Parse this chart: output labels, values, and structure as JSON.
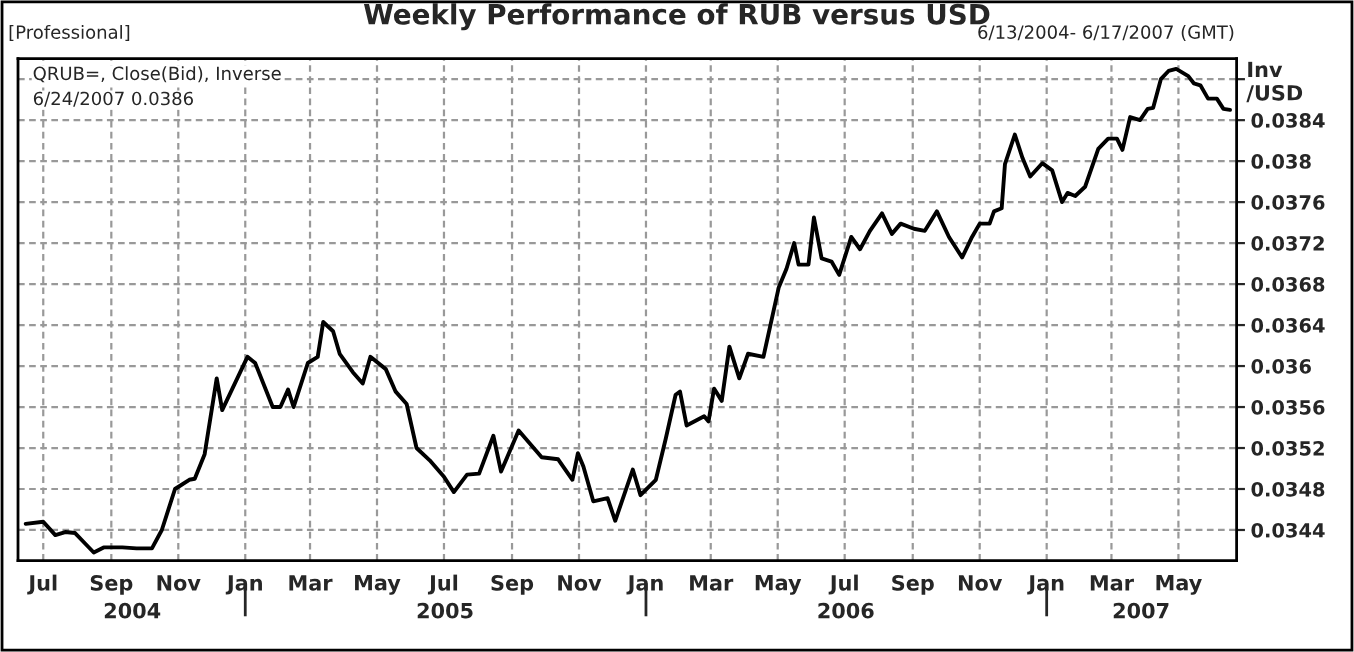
{
  "chart_data": {
    "type": "line",
    "title": "Weekly Performance of RUB versus USD",
    "subtitle": "6/13/2004- 6/17/2007 (GMT)",
    "ylabel": "Inv\n/USD",
    "annotations": [
      "[Professional]",
      "QRUB=, Close(Bid), Inverse",
      "6/24/2007 0.0386"
    ],
    "x": [
      "2004-06-15",
      "2004-07-01",
      "2004-07-12",
      "2004-07-21",
      "2004-07-30",
      "2004-08-07",
      "2004-08-16",
      "2004-08-25",
      "2004-09-11",
      "2004-09-24",
      "2004-10-08",
      "2004-10-17",
      "2004-10-29",
      "2004-11-11",
      "2004-11-16",
      "2004-11-25",
      "2004-12-06",
      "2004-12-11",
      "2005-01-03",
      "2005-01-10",
      "2005-01-26",
      "2005-02-02",
      "2005-02-09",
      "2005-02-14",
      "2005-02-27",
      "2005-03-08",
      "2005-03-13",
      "2005-03-22",
      "2005-03-28",
      "2005-04-09",
      "2005-04-18",
      "2005-04-25",
      "2005-05-09",
      "2005-05-18",
      "2005-05-28",
      "2005-06-06",
      "2005-06-18",
      "2005-07-01",
      "2005-07-10",
      "2005-07-22",
      "2005-08-02",
      "2005-08-15",
      "2005-08-22",
      "2005-09-07",
      "2005-09-28",
      "2005-10-13",
      "2005-10-26",
      "2005-10-31",
      "2005-11-05",
      "2005-11-14",
      "2005-11-27",
      "2005-12-04",
      "2005-12-20",
      "2005-12-27",
      "2006-01-10",
      "2006-01-19",
      "2006-01-28",
      "2006-02-01",
      "2006-02-07",
      "2006-02-23",
      "2006-02-27",
      "2006-03-04",
      "2006-03-11",
      "2006-03-18",
      "2006-03-27",
      "2006-04-04",
      "2006-04-18",
      "2006-05-02",
      "2006-05-09",
      "2006-05-16",
      "2006-05-20",
      "2006-05-29",
      "2006-06-03",
      "2006-06-10",
      "2006-06-19",
      "2006-06-26",
      "2006-07-07",
      "2006-07-15",
      "2006-07-24",
      "2006-08-04",
      "2006-08-13",
      "2006-08-21",
      "2006-09-02",
      "2006-09-12",
      "2006-09-23",
      "2006-10-04",
      "2006-10-16",
      "2006-10-25",
      "2006-11-01",
      "2006-11-10",
      "2006-11-14",
      "2006-11-21",
      "2006-11-24",
      "2006-12-03",
      "2006-12-10",
      "2006-12-17",
      "2006-12-28",
      "2007-01-06",
      "2007-01-15",
      "2007-01-20",
      "2007-01-27",
      "2007-02-05",
      "2007-02-17",
      "2007-02-26",
      "2007-03-06",
      "2007-03-11",
      "2007-03-18",
      "2007-03-27",
      "2007-04-03",
      "2007-04-08",
      "2007-04-15",
      "2007-04-22",
      "2007-04-29",
      "2007-05-10",
      "2007-05-15",
      "2007-05-21",
      "2007-05-28",
      "2007-06-05",
      "2007-06-11",
      "2007-06-17"
    ],
    "series": [
      {
        "color": "#000000",
        "values": [
          0.03446,
          0.03448,
          0.03435,
          0.03438,
          0.03437,
          0.03428,
          0.03418,
          0.03423,
          0.03423,
          0.03422,
          0.03422,
          0.0344,
          0.0348,
          0.03489,
          0.0349,
          0.03514,
          0.03588,
          0.03557,
          0.03609,
          0.03603,
          0.0356,
          0.0356,
          0.03577,
          0.0356,
          0.03603,
          0.03609,
          0.03643,
          0.03634,
          0.03612,
          0.03594,
          0.03583,
          0.03609,
          0.03597,
          0.03575,
          0.03563,
          0.0352,
          0.03508,
          0.03492,
          0.03477,
          0.03494,
          0.03495,
          0.03532,
          0.03497,
          0.03537,
          0.03511,
          0.03509,
          0.03489,
          0.03515,
          0.03502,
          0.03468,
          0.03471,
          0.03449,
          0.03499,
          0.03474,
          0.03489,
          0.03529,
          0.03572,
          0.03575,
          0.03542,
          0.03551,
          0.03546,
          0.03578,
          0.03566,
          0.03619,
          0.03588,
          0.03612,
          0.03609,
          0.03677,
          0.03695,
          0.0372,
          0.03699,
          0.03699,
          0.03745,
          0.03705,
          0.03702,
          0.03689,
          0.03726,
          0.03714,
          0.03732,
          0.03749,
          0.03729,
          0.03739,
          0.03734,
          0.03732,
          0.03751,
          0.03726,
          0.03706,
          0.03726,
          0.03739,
          0.03739,
          0.03751,
          0.03754,
          0.03797,
          0.03826,
          0.03803,
          0.03785,
          0.03798,
          0.03791,
          0.0376,
          0.03769,
          0.03766,
          0.03775,
          0.03812,
          0.03822,
          0.03822,
          0.03811,
          0.03843,
          0.0384,
          0.03851,
          0.03852,
          0.0388,
          0.03888,
          0.0389,
          0.03883,
          0.03876,
          0.03874,
          0.03861,
          0.03861,
          0.03851,
          0.0385
        ]
      }
    ],
    "xlim": [
      "2004-06-08",
      "2007-06-23"
    ],
    "xticks": [
      {
        "value": "2004-07-01",
        "label": "Jul"
      },
      {
        "value": "2004-09-01",
        "label": "Sep"
      },
      {
        "value": "2004-11-01",
        "label": "Nov"
      },
      {
        "value": "2005-01-01",
        "label": "Jan"
      },
      {
        "value": "2005-03-01",
        "label": "Mar"
      },
      {
        "value": "2005-05-01",
        "label": "May"
      },
      {
        "value": "2005-07-01",
        "label": "Jul"
      },
      {
        "value": "2005-09-01",
        "label": "Sep"
      },
      {
        "value": "2005-11-01",
        "label": "Nov"
      },
      {
        "value": "2006-01-01",
        "label": "Jan"
      },
      {
        "value": "2006-03-01",
        "label": "Mar"
      },
      {
        "value": "2006-05-01",
        "label": "May"
      },
      {
        "value": "2006-07-01",
        "label": "Jul"
      },
      {
        "value": "2006-09-01",
        "label": "Sep"
      },
      {
        "value": "2006-11-01",
        "label": "Nov"
      },
      {
        "value": "2007-01-01",
        "label": "Jan"
      },
      {
        "value": "2007-03-01",
        "label": "Mar"
      },
      {
        "value": "2007-05-01",
        "label": "May"
      }
    ],
    "x2lim": [
      "2004-06-08",
      "2007-06-23"
    ],
    "x2ticks": [
      {
        "value": "2004-09-20",
        "label": "2004"
      },
      {
        "value": "2005-01-01",
        "label": null
      },
      {
        "value": "2005-07-02",
        "label": "2005"
      },
      {
        "value": "2006-01-01",
        "label": null
      },
      {
        "value": "2006-07-02",
        "label": "2006"
      },
      {
        "value": "2007-01-01",
        "label": null
      },
      {
        "value": "2007-03-28",
        "label": "2007"
      }
    ],
    "ylim": [
      0.0341,
      0.039
    ],
    "yticks": [
      0.0344,
      0.0348,
      0.0352,
      0.0356,
      0.036,
      0.0364,
      0.0368,
      0.0372,
      0.0376,
      0.038,
      0.0384,
      {
        "value": 0.0388,
        "label": null
      }
    ],
    "grid": true,
    "legend": false,
    "marker": "none",
    "line_style": "solid"
  }
}
